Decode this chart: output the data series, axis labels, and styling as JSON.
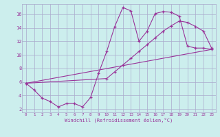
{
  "xlabel": "Windchill (Refroidissement éolien,°C)",
  "bg_color": "#cceeed",
  "line_color": "#993399",
  "grid_color": "#aaaacc",
  "xlim": [
    -0.5,
    23.5
  ],
  "ylim": [
    1.5,
    17.5
  ],
  "xticks": [
    0,
    1,
    2,
    3,
    4,
    5,
    6,
    7,
    8,
    9,
    10,
    11,
    12,
    13,
    14,
    15,
    16,
    17,
    18,
    19,
    20,
    21,
    22,
    23
  ],
  "yticks": [
    2,
    4,
    6,
    8,
    10,
    12,
    14,
    16
  ],
  "line1_x": [
    0,
    1,
    2,
    3,
    4,
    5,
    6,
    7,
    8,
    9,
    10,
    11,
    12,
    13,
    14,
    15,
    16,
    17,
    18,
    19,
    20,
    21,
    22,
    23
  ],
  "line1_y": [
    5.8,
    4.8,
    3.6,
    3.1,
    2.3,
    2.8,
    2.8,
    2.3,
    3.7,
    7.3,
    10.5,
    14.2,
    17.0,
    16.5,
    12.0,
    13.5,
    16.1,
    16.4,
    16.3,
    15.7,
    11.3,
    11.0,
    11.0,
    10.8
  ],
  "line2_x": [
    0,
    10,
    11,
    12,
    13,
    14,
    15,
    16,
    17,
    18,
    19,
    20,
    21,
    22,
    23
  ],
  "line2_y": [
    5.8,
    6.5,
    7.5,
    8.5,
    9.5,
    10.5,
    11.5,
    12.5,
    13.5,
    14.3,
    15.0,
    14.8,
    14.2,
    13.5,
    11.0
  ],
  "line3_x": [
    0,
    23
  ],
  "line3_y": [
    5.8,
    10.8
  ]
}
